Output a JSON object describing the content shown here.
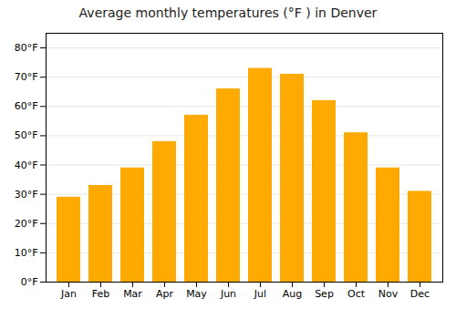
{
  "chart_data": {
    "type": "bar",
    "title": "Average monthly temperatures (°F ) in Denver",
    "categories": [
      "Jan",
      "Feb",
      "Mar",
      "Apr",
      "May",
      "Jun",
      "Jul",
      "Aug",
      "Sep",
      "Oct",
      "Nov",
      "Dec"
    ],
    "values": [
      29,
      33,
      39,
      48,
      57,
      66,
      73,
      71,
      62,
      51,
      39,
      31
    ],
    "color": "#FFAA00",
    "ylim": [
      0,
      85
    ],
    "yticks": [
      {
        "value": 0,
        "label": "0°F"
      },
      {
        "value": 10,
        "label": "10°F"
      },
      {
        "value": 20,
        "label": "20°F"
      },
      {
        "value": 30,
        "label": "30°F"
      },
      {
        "value": 40,
        "label": "40°F"
      },
      {
        "value": 50,
        "label": "50°F"
      },
      {
        "value": 60,
        "label": "60°F"
      },
      {
        "value": 70,
        "label": "70°F"
      },
      {
        "value": 80,
        "label": "80°F"
      }
    ],
    "grid": true
  }
}
